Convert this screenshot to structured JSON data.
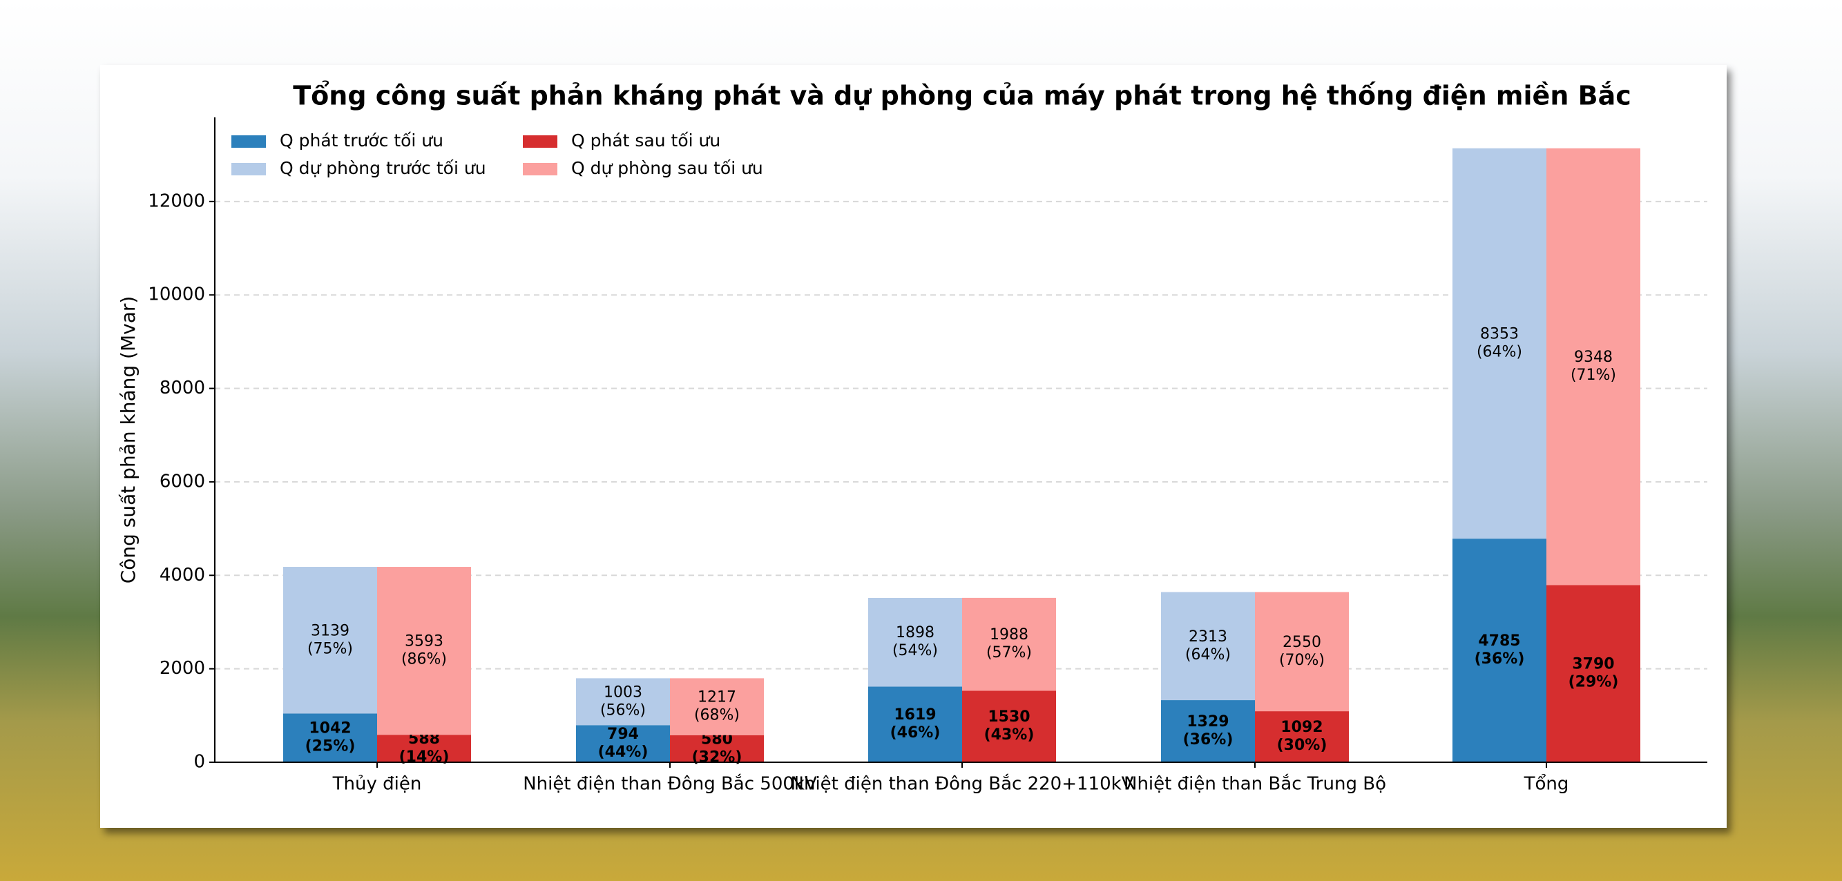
{
  "chart_data": {
    "type": "bar",
    "title": "Tổng công suất phản kháng phát và dự phòng của máy phát trong hệ thống điện miền Bắc",
    "y_label": "Công suất phản kháng (Mvar)",
    "categories": [
      "Thủy điện",
      "Nhiệt điện than Đông Bắc 500kV",
      "Nhiệt điện than Đông Bắc 220+110kV",
      "Nhiệt điện than Bắc Trung Bộ",
      "Tổng"
    ],
    "series": [
      {
        "name": "Q phát trước tối ưu",
        "color": "#2c80bc",
        "values": [
          1042,
          794,
          1619,
          1329,
          4785
        ],
        "value_labels": [
          "1042 (25%)",
          "794 (44%)",
          "1619 (46%)",
          "1329 (36%)",
          "4785 (36%)"
        ]
      },
      {
        "name": "Q dự phòng trước tối ưu",
        "color": "#b4cbe8",
        "values": [
          3139,
          1003,
          1898,
          2313,
          8353
        ],
        "value_labels": [
          "3139 (75%)",
          "1003 (56%)",
          "1898 (54%)",
          "2313 (64%)",
          "8353 (64%)"
        ]
      },
      {
        "name": "Q phát sau tối ưu",
        "color": "#d62e2f",
        "values": [
          588,
          580,
          1530,
          1092,
          3790
        ],
        "value_labels": [
          "588 (14%)",
          "580 (32%)",
          "1530 (43%)",
          "1092 (30%)",
          "3790 (29%)"
        ]
      },
      {
        "name": "Q dự phòng sau tối ưu",
        "color": "#fba09e",
        "values": [
          3593,
          1217,
          1988,
          2550,
          9348
        ],
        "value_labels": [
          "3593 (86%)",
          "1217 (68%)",
          "1988 (57%)",
          "2550 (70%)",
          "9348 (71%)"
        ]
      }
    ],
    "ylim": [
      0,
      13800
    ],
    "yticks": [
      0,
      2000,
      4000,
      6000,
      8000,
      10000,
      12000
    ],
    "grid": true
  }
}
